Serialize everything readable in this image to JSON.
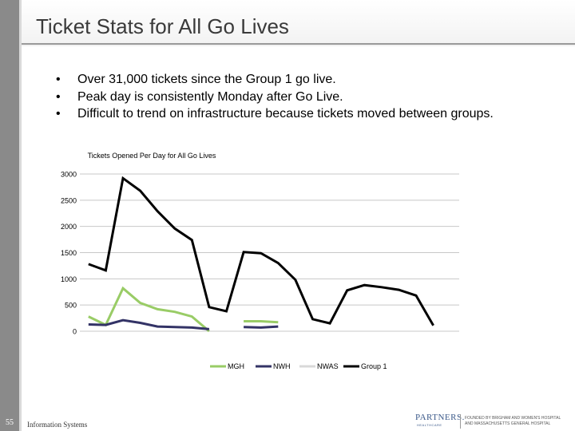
{
  "slide": {
    "title": "Ticket Stats for All Go Lives",
    "bullets": [
      "Over 31,000 tickets since the Group 1 go live.",
      "Peak day is consistently Monday after Go Live.",
      "Difficult to trend on infrastructure because tickets moved between groups."
    ],
    "bullet_symbol": "•",
    "page_number": "55",
    "footer_text": "Information Systems",
    "logo": {
      "word": "PARTNERS.",
      "sub": "HEALTHCARE",
      "line1": "FOUNDED BY BRIGHAM AND WOMEN'S HOSPITAL",
      "line2": "AND MASSACHUSETTS GENERAL HOSPITAL"
    }
  },
  "colors": {
    "MGH": "#99cc66",
    "NWH": "#333366",
    "NWAS": "#d9d9d9",
    "Group 1": "#000000",
    "sidebar": "#8a8a8a"
  },
  "chart_data": {
    "type": "line",
    "title": "Tickets Opened Per Day for All Go Lives",
    "ylim": [
      0,
      3000
    ],
    "yticks": [
      0,
      500,
      1000,
      1500,
      2000,
      2500,
      3000
    ],
    "ytick_labels": [
      "0",
      "500",
      "1000",
      "1500",
      "2000",
      "2500",
      "3000"
    ],
    "n_points": 22,
    "grid": true,
    "legend": "bottom",
    "series": [
      {
        "name": "MGH",
        "values": [
          280,
          120,
          820,
          540,
          420,
          370,
          280,
          0,
          null,
          190,
          190,
          170,
          null,
          null,
          null,
          null,
          null,
          null,
          null,
          null,
          null,
          null
        ]
      },
      {
        "name": "NWH",
        "values": [
          130,
          120,
          210,
          160,
          90,
          80,
          70,
          40,
          null,
          80,
          70,
          90,
          null,
          null,
          null,
          null,
          null,
          null,
          null,
          null,
          null,
          null
        ]
      },
      {
        "name": "NWAS",
        "values": [
          null,
          null,
          null,
          null,
          null,
          null,
          null,
          null,
          null,
          null,
          null,
          null,
          null,
          null,
          null,
          null,
          null,
          null,
          null,
          null,
          null,
          null
        ]
      },
      {
        "name": "Group 1",
        "values": [
          1280,
          1160,
          2920,
          2680,
          2290,
          1960,
          1740,
          460,
          380,
          1510,
          1490,
          1300,
          980,
          230,
          150,
          780,
          880,
          840,
          790,
          680,
          110,
          null
        ]
      }
    ]
  }
}
